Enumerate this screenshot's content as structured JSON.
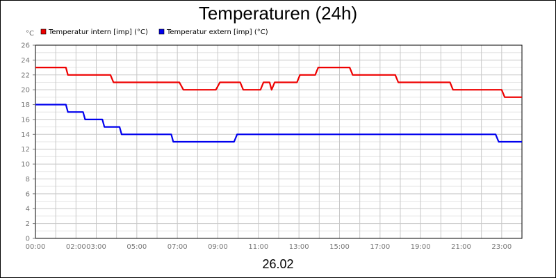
{
  "chart_data": {
    "type": "line",
    "title": "Temperaturen (24h)",
    "ylabel": "°C",
    "xlabel": "26.02",
    "ylim": [
      0,
      26
    ],
    "xlim": [
      0,
      24
    ],
    "grid": true,
    "legend_placement": "top-left",
    "y_ticks": [
      "0",
      "2",
      "4",
      "6",
      "8",
      "10",
      "12",
      "14",
      "16",
      "18",
      "20",
      "22",
      "24",
      "26"
    ],
    "x_tick_labels": [
      {
        "x": 0.0,
        "label": "00:00"
      },
      {
        "x": 2.0,
        "label": "02:00"
      },
      {
        "x": 3.0,
        "label": "03:00"
      },
      {
        "x": 5.0,
        "label": "05:00"
      },
      {
        "x": 7.0,
        "label": "07:00"
      },
      {
        "x": 9.0,
        "label": "09:00"
      },
      {
        "x": 11.0,
        "label": "11:00"
      },
      {
        "x": 13.0,
        "label": "13:00"
      },
      {
        "x": 15.0,
        "label": "15:00"
      },
      {
        "x": 17.0,
        "label": "17:00"
      },
      {
        "x": 19.0,
        "label": "19:00"
      },
      {
        "x": 21.0,
        "label": "21:00"
      },
      {
        "x": 23.0,
        "label": "23:00"
      }
    ],
    "series": [
      {
        "name": "Temperatur intern [imp] (°C)",
        "color": "#ee0000",
        "points": [
          [
            0.0,
            23
          ],
          [
            1.5,
            23
          ],
          [
            1.6,
            22
          ],
          [
            3.7,
            22
          ],
          [
            3.85,
            21
          ],
          [
            7.1,
            21
          ],
          [
            7.3,
            20
          ],
          [
            8.9,
            20
          ],
          [
            9.1,
            21
          ],
          [
            10.1,
            21
          ],
          [
            10.25,
            20
          ],
          [
            11.1,
            20
          ],
          [
            11.25,
            21
          ],
          [
            11.55,
            21
          ],
          [
            11.65,
            20
          ],
          [
            11.8,
            21
          ],
          [
            12.9,
            21
          ],
          [
            13.05,
            22
          ],
          [
            13.8,
            22
          ],
          [
            13.95,
            23
          ],
          [
            15.5,
            23
          ],
          [
            15.65,
            22
          ],
          [
            17.75,
            22
          ],
          [
            17.9,
            21
          ],
          [
            20.45,
            21
          ],
          [
            20.6,
            20
          ],
          [
            23.0,
            20
          ],
          [
            23.15,
            19
          ],
          [
            24.0,
            19
          ]
        ]
      },
      {
        "name": "Temperatur extern [imp] (°C)",
        "color": "#0000ee",
        "points": [
          [
            0.0,
            18
          ],
          [
            1.5,
            18
          ],
          [
            1.6,
            17
          ],
          [
            2.35,
            17
          ],
          [
            2.45,
            16
          ],
          [
            3.3,
            16
          ],
          [
            3.4,
            15
          ],
          [
            4.15,
            15
          ],
          [
            4.25,
            14
          ],
          [
            6.7,
            14
          ],
          [
            6.8,
            13
          ],
          [
            9.8,
            13
          ],
          [
            9.95,
            14
          ],
          [
            22.7,
            14
          ],
          [
            22.85,
            13
          ],
          [
            24.0,
            13
          ]
        ]
      }
    ]
  }
}
